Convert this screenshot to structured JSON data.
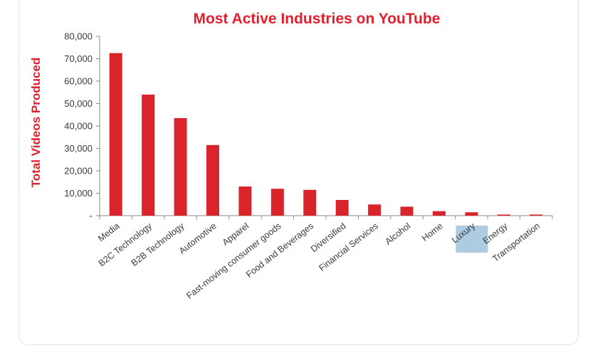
{
  "chart_data": {
    "type": "bar",
    "title": "Most Active Industries on YouTube",
    "xlabel": "",
    "ylabel": "Total Videos Produced",
    "ylim": [
      0,
      80000
    ],
    "yticks": [
      0,
      10000,
      20000,
      30000,
      40000,
      50000,
      60000,
      70000,
      80000
    ],
    "ytick_labels": [
      "-",
      "10,000",
      "20,000",
      "30,000",
      "40,000",
      "50,000",
      "60,000",
      "70,000",
      "80,000"
    ],
    "grid": false,
    "legend": "none",
    "categories": [
      "Media",
      "B2C Technology",
      "B2B Technology",
      "Automotive",
      "Apparel",
      "Fast-moving consumer goods",
      "Food and Beverages",
      "Diversified",
      "Financial Services",
      "Alcohol",
      "Home",
      "Luxury",
      "Energy",
      "Transportation"
    ],
    "values": [
      72500,
      54000,
      43500,
      31500,
      13000,
      12000,
      11500,
      7000,
      5000,
      4000,
      2000,
      1500,
      500,
      500
    ],
    "highlighted_category": "Luxury",
    "colors": {
      "bar": "#d9242c",
      "title": "#e31e2d",
      "ylabel": "#e31e2d",
      "highlight": "#a9c8df",
      "axis": "#8a8a8a"
    }
  }
}
